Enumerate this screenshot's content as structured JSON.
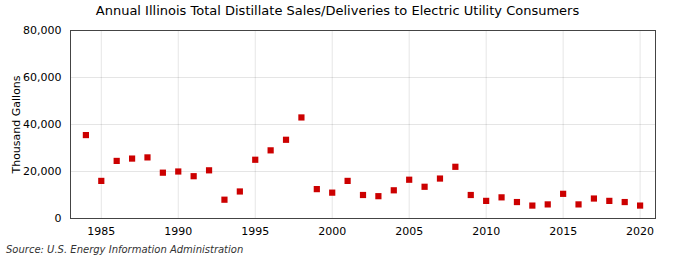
{
  "chart_data": {
    "type": "scatter",
    "title": "Annual Illinois Total Distillate Sales/Deliveries to Electric Utility Consumers",
    "ylabel": "Thousand Gallons",
    "annotation": "Source: U.S. Energy Information Administration",
    "x": [
      1984,
      1985,
      1986,
      1987,
      1988,
      1989,
      1990,
      1991,
      1992,
      1993,
      1994,
      1995,
      1996,
      1997,
      1998,
      1999,
      2000,
      2001,
      2002,
      2003,
      2004,
      2005,
      2006,
      2007,
      2008,
      2009,
      2010,
      2011,
      2012,
      2013,
      2014,
      2015,
      2016,
      2017,
      2018,
      2019,
      2020
    ],
    "values": [
      35500,
      16000,
      24500,
      25500,
      26000,
      19500,
      20000,
      18000,
      20500,
      8000,
      11500,
      25000,
      29000,
      33500,
      43000,
      12500,
      11000,
      16000,
      10000,
      9500,
      12000,
      16500,
      13500,
      17000,
      22000,
      10000,
      7500,
      9000,
      7000,
      5500,
      6000,
      10500,
      6000,
      8500,
      7500,
      7000,
      5500
    ],
    "color": "#cc0000",
    "marker": "square",
    "xlim": [
      1983,
      2021
    ],
    "xticks": [
      1985,
      1990,
      1995,
      2000,
      2005,
      2010,
      2015,
      2020
    ],
    "ylim": [
      0,
      80000
    ],
    "yticks": [
      0,
      {
        "value": 20000,
        "label": "20,000"
      },
      {
        "value": 40000,
        "label": "40,000"
      },
      {
        "value": 60000,
        "label": "60,000"
      },
      {
        "value": 80000,
        "label": "80,000"
      }
    ],
    "grid": true
  }
}
